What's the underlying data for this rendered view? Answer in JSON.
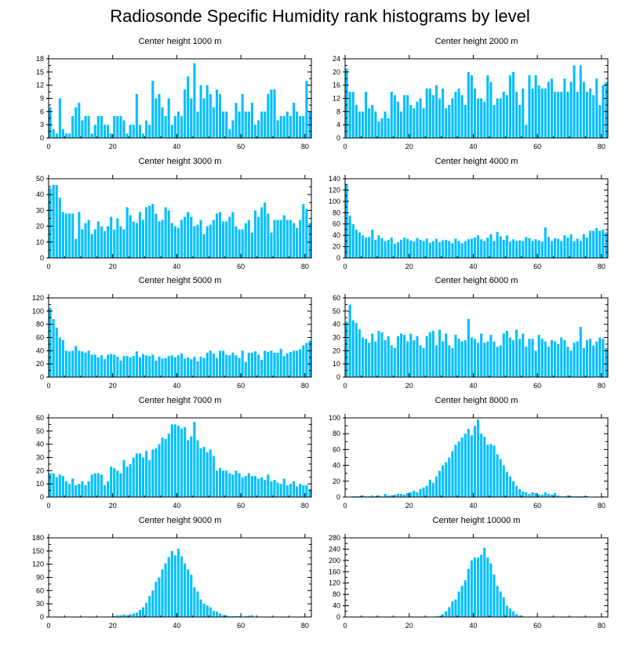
{
  "title": "Radiosonde Specific Humidity rank histograms by level",
  "bar_color": "#00bfff",
  "chart_data": [
    {
      "type": "bar",
      "title": "Center height 1000 m",
      "xlim": [
        0,
        82
      ],
      "ylim": [
        0,
        18
      ],
      "xticks": [
        0,
        20,
        40,
        60,
        80
      ],
      "yticks": [
        0,
        3,
        6,
        9,
        12,
        15,
        18
      ],
      "values": [
        7,
        2,
        1,
        9,
        2,
        1,
        1,
        5,
        7,
        8,
        4,
        5,
        5,
        1,
        3,
        5,
        5,
        3,
        3,
        1,
        5,
        5,
        5,
        4,
        1,
        3,
        3,
        10,
        3,
        1,
        4,
        3,
        13,
        9,
        10,
        7,
        5,
        9,
        3,
        5,
        6,
        5,
        11,
        14,
        9,
        17,
        6,
        12,
        9,
        12,
        10,
        7,
        11,
        10,
        6,
        6,
        2,
        4,
        8,
        6,
        10,
        6,
        6,
        8,
        3,
        4,
        6,
        6,
        10,
        11,
        11,
        4,
        5,
        5,
        6,
        5,
        8,
        6,
        5,
        5,
        13,
        6
      ]
    },
    {
      "type": "bar",
      "title": "Center height 2000 m",
      "xlim": [
        0,
        82
      ],
      "ylim": [
        0,
        24
      ],
      "xticks": [
        0,
        20,
        40,
        60,
        80
      ],
      "yticks": [
        0,
        4,
        8,
        12,
        16,
        20,
        24
      ],
      "values": [
        21,
        14,
        14,
        10,
        8,
        8,
        14,
        9,
        10,
        8,
        5,
        6,
        8,
        6,
        14,
        13,
        11,
        8,
        13,
        13,
        10,
        9,
        11,
        12,
        9,
        15,
        15,
        13,
        16,
        12,
        15,
        9,
        10,
        12,
        14,
        15,
        13,
        10,
        20,
        19,
        15,
        12,
        12,
        11,
        19,
        17,
        10,
        12,
        12,
        14,
        13,
        19,
        20,
        14,
        10,
        15,
        4,
        19,
        15,
        19,
        16,
        15,
        15,
        17,
        18,
        14,
        14,
        14,
        18,
        14,
        17,
        22,
        14,
        22,
        17,
        14,
        15,
        13,
        18,
        10,
        16,
        17
      ]
    },
    {
      "type": "bar",
      "title": "Center height 3000 m",
      "xlim": [
        0,
        82
      ],
      "ylim": [
        0,
        50
      ],
      "xticks": [
        0,
        20,
        40,
        60,
        80
      ],
      "yticks": [
        0,
        10,
        20,
        30,
        40,
        50
      ],
      "values": [
        44,
        46,
        46,
        38,
        29,
        28,
        28,
        28,
        12,
        29,
        18,
        22,
        24,
        15,
        18,
        23,
        20,
        17,
        20,
        26,
        18,
        25,
        20,
        18,
        32,
        27,
        23,
        22,
        29,
        24,
        32,
        33,
        34,
        28,
        23,
        24,
        32,
        30,
        22,
        20,
        19,
        24,
        26,
        29,
        26,
        20,
        21,
        24,
        15,
        20,
        21,
        24,
        28,
        29,
        23,
        23,
        26,
        29,
        20,
        18,
        18,
        22,
        24,
        16,
        30,
        26,
        32,
        35,
        28,
        16,
        24,
        24,
        24,
        27,
        24,
        24,
        22,
        19,
        24,
        34,
        31,
        22
      ]
    },
    {
      "type": "bar",
      "title": "Center height 4000 m",
      "xlim": [
        0,
        82
      ],
      "ylim": [
        0,
        140
      ],
      "xticks": [
        0,
        20,
        40,
        60,
        80
      ],
      "yticks": [
        0,
        20,
        40,
        60,
        80,
        100,
        120,
        140
      ],
      "values": [
        130,
        75,
        60,
        50,
        45,
        40,
        36,
        37,
        50,
        32,
        40,
        35,
        30,
        32,
        36,
        25,
        28,
        32,
        36,
        34,
        31,
        29,
        35,
        32,
        30,
        34,
        27,
        30,
        34,
        28,
        31,
        32,
        30,
        26,
        34,
        30,
        26,
        30,
        33,
        34,
        36,
        40,
        33,
        30,
        36,
        42,
        30,
        46,
        38,
        32,
        40,
        29,
        33,
        30,
        31,
        30,
        37,
        35,
        30,
        33,
        31,
        29,
        54,
        37,
        30,
        35,
        34,
        30,
        40,
        36,
        42,
        30,
        34,
        30,
        42,
        36,
        48,
        48,
        53,
        48,
        50,
        45
      ]
    },
    {
      "type": "bar",
      "title": "Center height 5000 m",
      "xlim": [
        0,
        82
      ],
      "ylim": [
        0,
        120
      ],
      "xticks": [
        0,
        20,
        40,
        60,
        80
      ],
      "yticks": [
        0,
        20,
        40,
        60,
        80,
        100,
        120
      ],
      "values": [
        105,
        88,
        75,
        60,
        56,
        40,
        39,
        40,
        47,
        40,
        39,
        37,
        40,
        34,
        34,
        30,
        33,
        27,
        34,
        35,
        34,
        31,
        25,
        32,
        32,
        30,
        32,
        39,
        30,
        35,
        33,
        32,
        34,
        25,
        31,
        28,
        29,
        32,
        33,
        30,
        33,
        36,
        28,
        30,
        27,
        31,
        24,
        31,
        29,
        37,
        40,
        36,
        29,
        40,
        40,
        34,
        33,
        37,
        33,
        29,
        40,
        23,
        37,
        37,
        39,
        34,
        26,
        40,
        38,
        40,
        37,
        37,
        43,
        32,
        36,
        38,
        40,
        40,
        42,
        48,
        52,
        55
      ]
    },
    {
      "type": "bar",
      "title": "Center height 6000 m",
      "xlim": [
        0,
        82
      ],
      "ylim": [
        0,
        60
      ],
      "xticks": [
        0,
        20,
        40,
        60,
        80
      ],
      "yticks": [
        0,
        10,
        20,
        30,
        40,
        50,
        60
      ],
      "values": [
        42,
        55,
        43,
        41,
        36,
        30,
        29,
        26,
        33,
        27,
        35,
        34,
        28,
        31,
        24,
        22,
        31,
        33,
        32,
        27,
        33,
        28,
        31,
        24,
        22,
        31,
        34,
        35,
        24,
        36,
        27,
        33,
        24,
        22,
        32,
        29,
        27,
        28,
        44,
        30,
        29,
        26,
        33,
        26,
        27,
        32,
        27,
        23,
        24,
        33,
        35,
        30,
        28,
        36,
        29,
        33,
        23,
        29,
        29,
        20,
        32,
        29,
        27,
        23,
        28,
        27,
        25,
        30,
        28,
        23,
        20,
        26,
        27,
        38,
        22,
        28,
        29,
        24,
        27,
        30,
        29,
        22
      ]
    },
    {
      "type": "bar",
      "title": "Center height 7000 m",
      "xlim": [
        0,
        82
      ],
      "ylim": [
        0,
        60
      ],
      "xticks": [
        0,
        20,
        40,
        60,
        80
      ],
      "yticks": [
        0,
        10,
        20,
        30,
        40,
        50,
        60
      ],
      "values": [
        18,
        18,
        15,
        17,
        16,
        12,
        10,
        14,
        9,
        10,
        12,
        9,
        12,
        17,
        18,
        18,
        17,
        9,
        12,
        23,
        22,
        20,
        18,
        28,
        23,
        25,
        30,
        33,
        33,
        30,
        35,
        28,
        36,
        37,
        40,
        45,
        44,
        48,
        55,
        55,
        54,
        52,
        53,
        43,
        46,
        57,
        43,
        37,
        38,
        34,
        36,
        31,
        20,
        22,
        20,
        20,
        18,
        17,
        20,
        18,
        15,
        16,
        18,
        16,
        16,
        14,
        15,
        13,
        17,
        12,
        13,
        11,
        10,
        14,
        9,
        10,
        12,
        8,
        10,
        9,
        9,
        6
      ]
    },
    {
      "type": "bar",
      "title": "Center height 8000 m",
      "xlim": [
        0,
        82
      ],
      "ylim": [
        0,
        100
      ],
      "xticks": [
        0,
        20,
        40,
        60,
        80
      ],
      "yticks": [
        0,
        20,
        40,
        60,
        80,
        100
      ],
      "values": [
        0,
        0,
        1,
        1,
        1,
        2,
        1,
        1,
        2,
        1,
        2,
        1,
        4,
        2,
        2,
        3,
        4,
        4,
        3,
        5,
        6,
        8,
        6,
        10,
        12,
        14,
        22,
        18,
        26,
        33,
        40,
        44,
        50,
        58,
        66,
        70,
        75,
        80,
        86,
        78,
        90,
        98,
        80,
        76,
        66,
        67,
        65,
        54,
        48,
        40,
        32,
        26,
        20,
        14,
        10,
        7,
        6,
        4,
        6,
        5,
        3,
        3,
        6,
        4,
        3,
        5,
        2,
        1,
        1,
        2,
        1,
        1,
        1,
        1,
        1,
        1,
        0,
        0,
        0,
        0,
        1,
        0
      ]
    },
    {
      "type": "bar",
      "title": "Center height 9000 m",
      "xlim": [
        0,
        82
      ],
      "ylim": [
        0,
        180
      ],
      "xticks": [
        0,
        20,
        40,
        60,
        80
      ],
      "yticks": [
        0,
        30,
        60,
        90,
        120,
        150,
        180
      ],
      "values": [
        0,
        0,
        0,
        0,
        0,
        0,
        0,
        0,
        0,
        0,
        0,
        0,
        0,
        0,
        0,
        0,
        0,
        0,
        1,
        1,
        2,
        4,
        4,
        6,
        4,
        6,
        8,
        10,
        16,
        22,
        32,
        48,
        60,
        80,
        90,
        108,
        122,
        136,
        150,
        140,
        155,
        138,
        122,
        108,
        96,
        68,
        58,
        40,
        30,
        26,
        22,
        14,
        12,
        8,
        4,
        4,
        2,
        2,
        2,
        2,
        1,
        2,
        3,
        4,
        1,
        1,
        1,
        0,
        0,
        0,
        0,
        0,
        0,
        0,
        0,
        0,
        0,
        0,
        0,
        0,
        0,
        0
      ]
    },
    {
      "type": "bar",
      "title": "Center height 10000 m",
      "xlim": [
        0,
        82
      ],
      "ylim": [
        0,
        280
      ],
      "xticks": [
        0,
        20,
        40,
        60,
        80
      ],
      "yticks": [
        0,
        40,
        80,
        120,
        160,
        200,
        240,
        280
      ],
      "values": [
        0,
        0,
        0,
        0,
        0,
        0,
        0,
        0,
        0,
        0,
        0,
        0,
        0,
        0,
        0,
        0,
        0,
        0,
        0,
        0,
        0,
        0,
        0,
        0,
        0,
        0,
        0,
        0,
        2,
        4,
        10,
        20,
        35,
        55,
        62,
        90,
        110,
        130,
        170,
        200,
        210,
        210,
        220,
        245,
        210,
        190,
        150,
        110,
        90,
        70,
        40,
        30,
        20,
        10,
        5,
        2,
        1,
        0,
        0,
        0,
        0,
        0,
        0,
        0,
        0,
        0,
        0,
        0,
        0,
        0,
        0,
        0,
        0,
        0,
        0,
        0,
        0,
        0,
        0,
        0,
        0,
        0
      ]
    }
  ]
}
